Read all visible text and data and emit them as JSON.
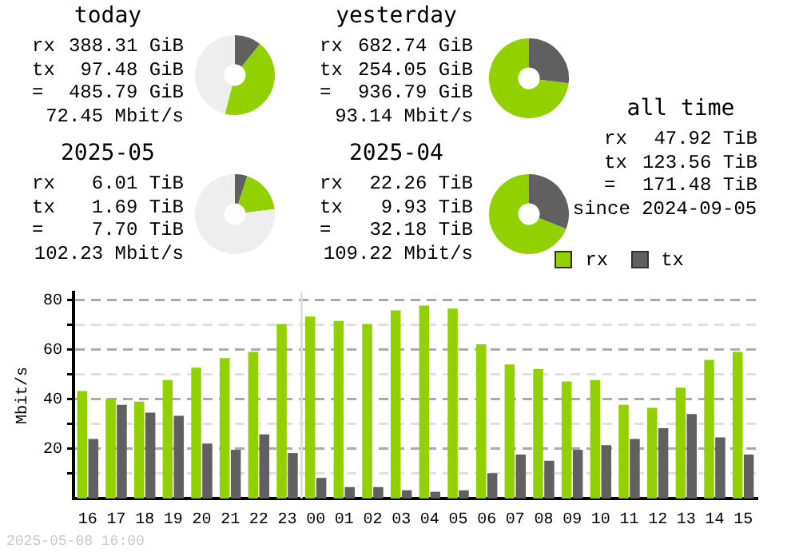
{
  "chart_data": [
    {
      "type": "donut",
      "title": "today",
      "categories": [
        null,
        null,
        null
      ],
      "values": [
        10.8,
        43.2,
        46
      ],
      "colors": [
        "#606060",
        "#92d000",
        "#eeeeee"
      ],
      "annotations": [
        "rx",
        "388.31 GiB",
        "tx",
        "97.48 GiB",
        "=",
        "485.79 GiB",
        "72.45 Mbit/s"
      ]
    },
    {
      "type": "donut",
      "title": "yesterday",
      "categories": [
        null,
        null
      ],
      "values": [
        27,
        73
      ],
      "colors": [
        "#606060",
        "#92d000"
      ],
      "annotations": [
        "rx",
        "682.74 GiB",
        "tx",
        "254.05 GiB",
        "=",
        "936.79 GiB",
        "93.14 Mbit/s"
      ]
    },
    {
      "type": "donut",
      "title": "2025-05",
      "categories": [
        null,
        null,
        null
      ],
      "values": [
        5,
        18,
        77
      ],
      "colors": [
        "#606060",
        "#92d000",
        "#eeeeee"
      ],
      "annotations": [
        "rx",
        "6.01 TiB",
        "tx",
        "1.69 TiB",
        "=",
        "7.70 TiB",
        "102.23 Mbit/s"
      ]
    },
    {
      "type": "donut",
      "title": "2025-04",
      "categories": [
        null,
        null
      ],
      "values": [
        31,
        69
      ],
      "colors": [
        "#606060",
        "#92d000"
      ],
      "annotations": [
        "rx",
        "22.26 TiB",
        "tx",
        "9.93 TiB",
        "=",
        "32.18 TiB",
        "109.22 Mbit/s"
      ]
    },
    {
      "type": "other",
      "title": "all time",
      "annotations": [
        "rx",
        "47.92 TiB",
        "tx",
        "123.56 TiB",
        "=",
        "171.48 TiB",
        "since 2024-09-05"
      ]
    },
    {
      "type": "bar",
      "ylabel": "Mbit/s",
      "categories": [
        "16",
        "17",
        "18",
        "19",
        "20",
        "21",
        "22",
        "23",
        "00",
        "01",
        "02",
        "03",
        "04",
        "05",
        "06",
        "07",
        "08",
        "09",
        "10",
        "11",
        "12",
        "13",
        "14",
        "15"
      ],
      "series": [
        {
          "name": "rx",
          "color": "#92d000",
          "values": [
            43.3,
            40.2,
            39.0,
            47.7,
            52.7,
            56.5,
            59.0,
            70.2,
            73.3,
            71.5,
            70.2,
            75.8,
            77.7,
            76.5,
            62.1,
            54.0,
            52.1,
            47.1,
            47.7,
            37.7,
            36.5,
            44.6,
            55.8,
            59.0
          ]
        },
        {
          "name": "tx",
          "color": "#606060",
          "values": [
            24.0,
            37.7,
            34.6,
            33.3,
            22.1,
            19.6,
            25.8,
            18.3,
            8.3,
            4.6,
            4.6,
            3.3,
            2.7,
            3.3,
            10.2,
            17.7,
            15.2,
            19.6,
            21.5,
            24.0,
            28.3,
            34.0,
            24.6,
            17.7
          ]
        }
      ],
      "ylim": [
        0,
        83
      ],
      "yticks": [
        {
          "value": 10,
          "label": null
        },
        20,
        {
          "value": 30,
          "label": null
        },
        40,
        {
          "value": 50,
          "label": null
        },
        60,
        {
          "value": 70,
          "label": null
        },
        80
      ],
      "grid": "y",
      "legend": "top right",
      "ref_lines": [
        {
          "axis": "x",
          "value": "00",
          "color": "#dddddd"
        }
      ],
      "annotations": [
        "2025-05-08 16:00"
      ]
    }
  ]
}
